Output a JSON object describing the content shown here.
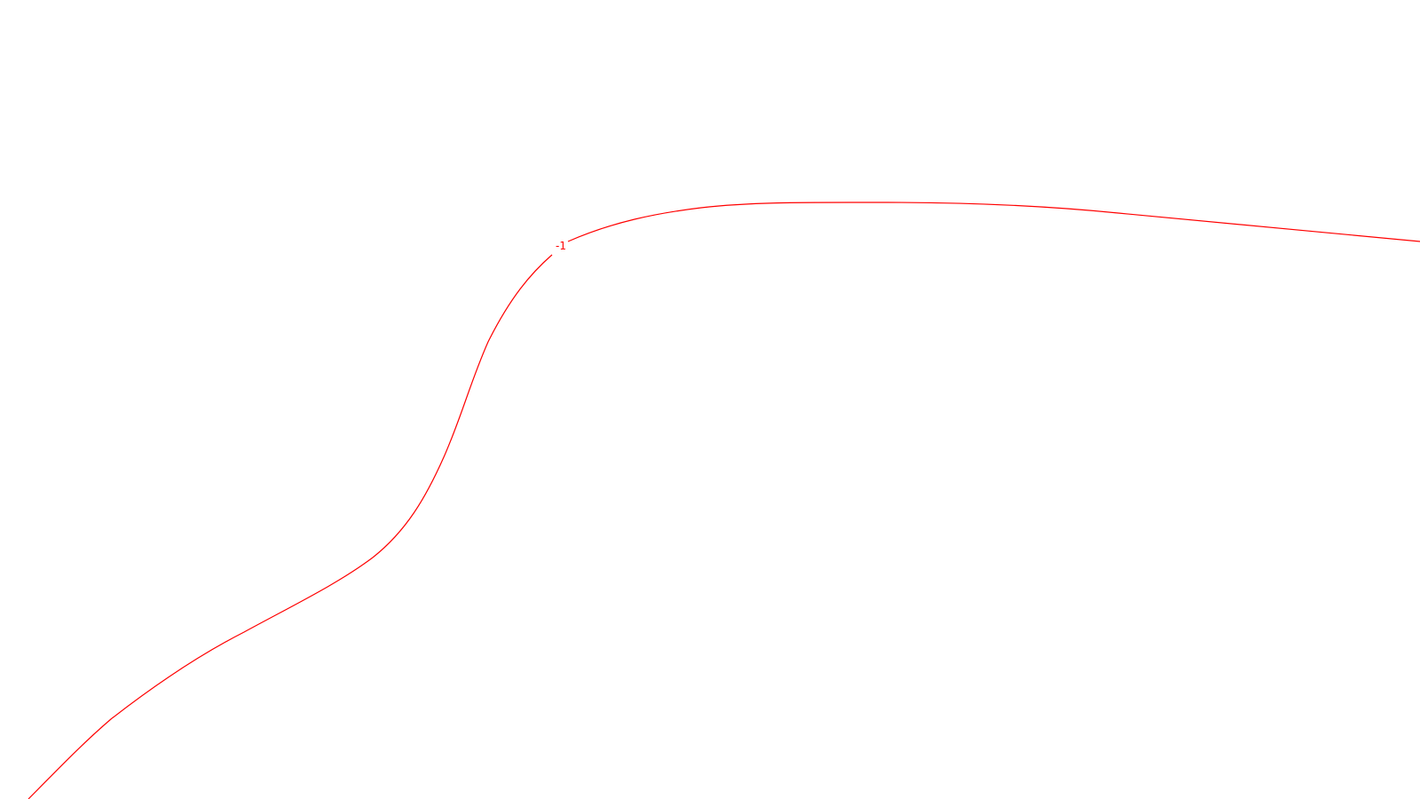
{
  "diagram": {
    "background_color": "#ffffff",
    "contour": {
      "stroke_color": "#ff0000",
      "label_text": "-1",
      "label_color": "#ff0000"
    }
  }
}
